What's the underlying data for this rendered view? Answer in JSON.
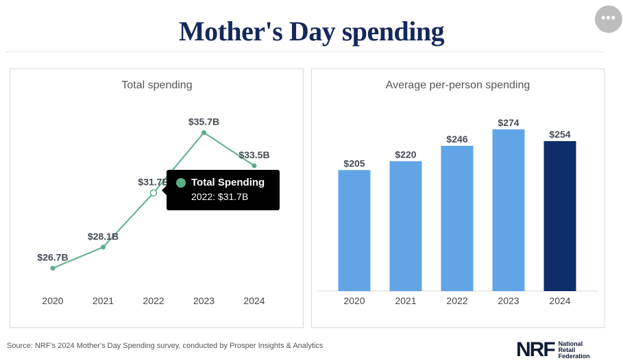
{
  "title": "Mother's Day spending",
  "more_button_icon": "more-horizontal-icon",
  "more_button_glyph": "•••",
  "source": "Source: NRF's 2024 Mother's Day Spending survey, conducted by Prosper Insights & Analytics",
  "logo": {
    "mark": "NRF",
    "lines": [
      "National",
      "Retail",
      "Federation"
    ]
  },
  "colors": {
    "title": "#14295a",
    "line": "#5cae87",
    "bar_default": "#62a5e6",
    "bar_highlight": "#0f2d6b",
    "tooltip_bg": "#000000"
  },
  "tooltip": {
    "series": "Total Spending",
    "text": "2022: $31.7B"
  },
  "chart_data": [
    {
      "type": "line",
      "title": "Total spending",
      "categories": [
        "2020",
        "2021",
        "2022",
        "2023",
        "2024"
      ],
      "values": [
        26.7,
        28.1,
        31.7,
        35.7,
        33.5
      ],
      "labels": [
        "$26.7B",
        "$28.1B",
        "$31.7B",
        "$35.7B",
        "$33.5B"
      ],
      "series_name": "Total Spending",
      "ylim": [
        26.0,
        36.5
      ],
      "unit": "billion USD",
      "highlighted_index": 2,
      "grid": false,
      "xlabel": "",
      "ylabel": ""
    },
    {
      "type": "bar",
      "title": "Average per-person spending",
      "categories": [
        "2020",
        "2021",
        "2022",
        "2023",
        "2024"
      ],
      "values": [
        205,
        220,
        246,
        274,
        254
      ],
      "labels": [
        "$205",
        "$220",
        "$246",
        "$274",
        "$254"
      ],
      "ylim": [
        0,
        290
      ],
      "unit": "USD",
      "highlighted_index": 4,
      "grid": false,
      "xlabel": "",
      "ylabel": ""
    }
  ]
}
